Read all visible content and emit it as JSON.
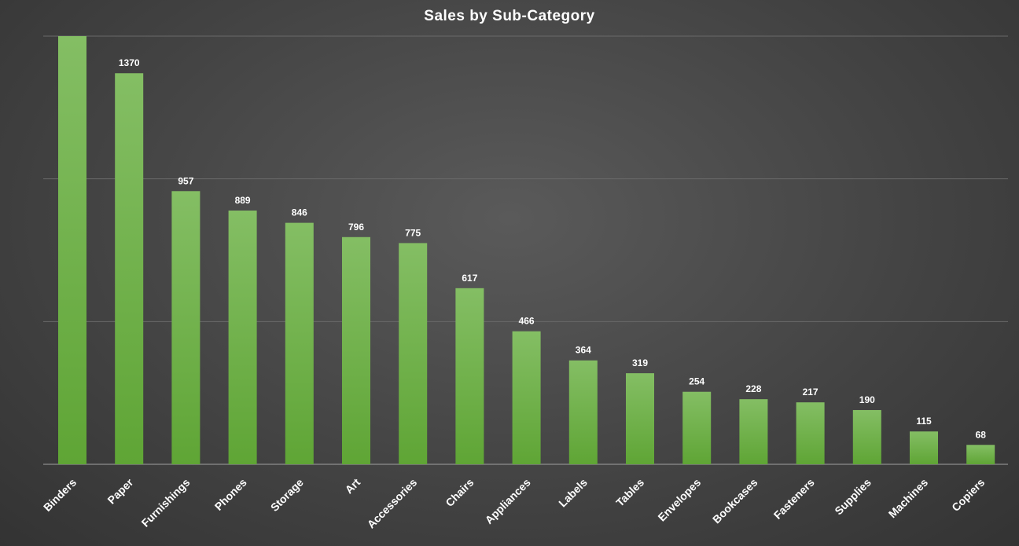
{
  "chart_data": {
    "type": "bar",
    "title": "Sales by Sub-Category",
    "xlabel": "",
    "ylabel": "",
    "categories": [
      "Binders",
      "Paper",
      "Furnishings",
      "Phones",
      "Storage",
      "Art",
      "Accessories",
      "Chairs",
      "Appliances",
      "Labels",
      "Tables",
      "Envelopes",
      "Bookcases",
      "Fasteners",
      "Supplies",
      "Machines",
      "Copiers"
    ],
    "values": [
      1523,
      1370,
      957,
      889,
      846,
      796,
      775,
      617,
      466,
      364,
      319,
      254,
      228,
      217,
      190,
      115,
      68
    ],
    "data_labels": [
      "",
      "1370",
      "957",
      "889",
      "846",
      "796",
      "775",
      "617",
      "466",
      "364",
      "319",
      "254",
      "228",
      "217",
      "190",
      "115",
      "68"
    ],
    "ylim": [
      0,
      1500
    ],
    "grid": true,
    "bar_color": "#6aaf3d",
    "legend": "none"
  }
}
